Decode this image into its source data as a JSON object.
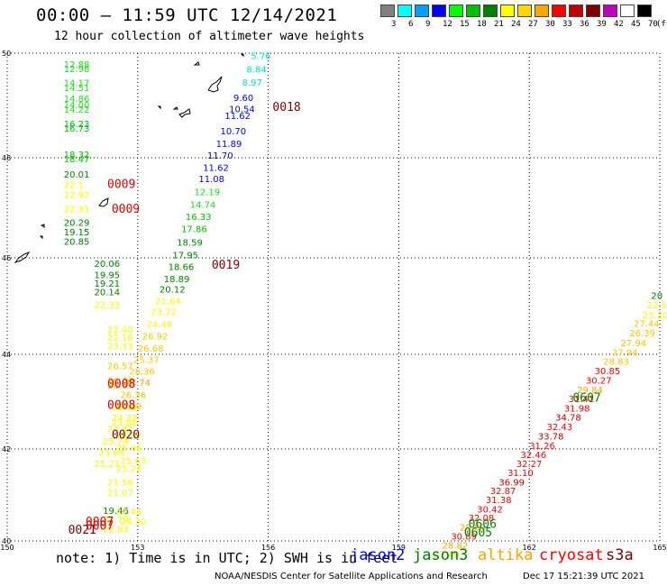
{
  "header": {
    "title": "00:00 – 11:59 UTC 12/14/2021",
    "subtitle": "12 hour collection of altimeter wave heights"
  },
  "colorbar": {
    "unit": "(ft)",
    "bins": [
      {
        "color": "#808080",
        "label": "3"
      },
      {
        "color": "#00ffff",
        "label": "6"
      },
      {
        "color": "#00a0ff",
        "label": "9"
      },
      {
        "color": "#0000ff",
        "label": "12"
      },
      {
        "color": "#00ff00",
        "label": "15"
      },
      {
        "color": "#00c000",
        "label": "18"
      },
      {
        "color": "#008000",
        "label": "21"
      },
      {
        "color": "#ffff00",
        "label": "24"
      },
      {
        "color": "#ffd700",
        "label": "27"
      },
      {
        "color": "#ffa500",
        "label": "30"
      },
      {
        "color": "#ff0000",
        "label": "33"
      },
      {
        "color": "#c00000",
        "label": "36"
      },
      {
        "color": "#800000",
        "label": "39"
      },
      {
        "color": "#c000c0",
        "label": "42"
      },
      {
        "color": "#ffffff",
        "label": "45"
      },
      {
        "color": "#000000",
        "label": "70"
      }
    ]
  },
  "axes": {
    "x_ticks": [
      "150",
      "153",
      "156",
      "159",
      "162",
      "165"
    ],
    "y_ticks": [
      "50",
      "48",
      "46",
      "44",
      "42",
      "40"
    ],
    "lon_range": [
      150,
      165
    ],
    "lat_range": [
      40,
      50
    ]
  },
  "colors": {
    "c6": "#00e0e0",
    "c12": "#0000ff",
    "c15": "#22dd22",
    "c18": "#00c000",
    "c21": "#008000",
    "c24": "#ffff00",
    "c27": "#ffc800",
    "c30": "#ffa500",
    "c33": "#ff0000",
    "c36": "#c00000",
    "time_red": "#dd0000",
    "time_dark": "#800000",
    "time_green": "#008000"
  },
  "tracks": [
    {
      "name": "track-a",
      "obs": [
        {
          "lon": 151.3,
          "lat": 49.72,
          "v": "12.88",
          "c": "c15"
        },
        {
          "lon": 151.3,
          "lat": 49.64,
          "v": "12.98",
          "c": "c15"
        },
        {
          "lon": 151.3,
          "lat": 49.37,
          "v": "14.17",
          "c": "c15"
        },
        {
          "lon": 151.3,
          "lat": 49.28,
          "v": "14.51",
          "c": "c15"
        },
        {
          "lon": 151.3,
          "lat": 49.07,
          "v": "14.86",
          "c": "c15"
        },
        {
          "lon": 151.3,
          "lat": 48.95,
          "v": "14.00",
          "c": "c15"
        },
        {
          "lon": 151.3,
          "lat": 48.86,
          "v": "14.22",
          "c": "c15"
        },
        {
          "lon": 151.3,
          "lat": 48.59,
          "v": "16.23",
          "c": "c18"
        },
        {
          "lon": 151.3,
          "lat": 48.5,
          "v": "16.73",
          "c": "c18"
        },
        {
          "lon": 151.3,
          "lat": 48.0,
          "v": "18.32",
          "c": "c18"
        },
        {
          "lon": 151.3,
          "lat": 47.91,
          "v": "18.47",
          "c": "c18"
        },
        {
          "lon": 151.3,
          "lat": 47.6,
          "v": "20.01",
          "c": "c21"
        },
        {
          "lon": 151.3,
          "lat": 47.4,
          "v": "22.1",
          "c": "c24"
        },
        {
          "lon": 151.3,
          "lat": 47.2,
          "v": "22.92",
          "c": "c24"
        },
        {
          "lon": 151.3,
          "lat": 46.91,
          "v": "22.31",
          "c": "c24"
        },
        {
          "lon": 151.3,
          "lat": 46.64,
          "v": "20.29",
          "c": "c21"
        },
        {
          "lon": 151.3,
          "lat": 46.45,
          "v": "19.15",
          "c": "c21"
        },
        {
          "lon": 151.3,
          "lat": 46.26,
          "v": "20.85",
          "c": "c21"
        },
        {
          "lon": 152.0,
          "lat": 45.81,
          "v": "20.06",
          "c": "c21"
        },
        {
          "lon": 152.0,
          "lat": 45.58,
          "v": "19.95",
          "c": "c21"
        },
        {
          "lon": 152.0,
          "lat": 45.4,
          "v": "19.21",
          "c": "c21"
        },
        {
          "lon": 152.0,
          "lat": 45.22,
          "v": "20.14",
          "c": "c21"
        },
        {
          "lon": 152.0,
          "lat": 44.95,
          "v": "22.33",
          "c": "c24"
        },
        {
          "lon": 152.3,
          "lat": 44.45,
          "v": "22.40",
          "c": "c24"
        },
        {
          "lon": 152.3,
          "lat": 44.28,
          "v": "22.16",
          "c": "c24"
        },
        {
          "lon": 152.3,
          "lat": 44.1,
          "v": "23.33",
          "c": "c24"
        },
        {
          "lon": 152.3,
          "lat": 43.69,
          "v": "26.57",
          "c": "c27"
        },
        {
          "lon": 152.3,
          "lat": 43.38,
          "v": "26.33",
          "c": "c27"
        },
        {
          "lon": 152.3,
          "lat": 43.28,
          "v": "26.57",
          "c": "c27"
        },
        {
          "lon": 152.4,
          "lat": 42.82,
          "v": "25.09",
          "c": "c24"
        },
        {
          "lon": 152.4,
          "lat": 42.5,
          "v": "23.88",
          "c": "c24"
        },
        {
          "lon": 152.5,
          "lat": 42.23,
          "v": "24.92",
          "c": "c24"
        },
        {
          "lon": 152.5,
          "lat": 41.95,
          "v": "25.66",
          "c": "c24"
        },
        {
          "lon": 152.6,
          "lat": 41.68,
          "v": "25.63",
          "c": "c24"
        },
        {
          "lon": 152.5,
          "lat": 41.5,
          "v": "25.24",
          "c": "c24"
        },
        {
          "lon": 152.3,
          "lat": 41.21,
          "v": "21.58",
          "c": "c24"
        },
        {
          "lon": 152.3,
          "lat": 40.98,
          "v": "21.07",
          "c": "c24"
        },
        {
          "lon": 152.2,
          "lat": 40.59,
          "v": "19.46",
          "c": "c21"
        },
        {
          "lon": 152.2,
          "lat": 40.4,
          "v": "21.19",
          "c": "c24"
        },
        {
          "lon": 152.2,
          "lat": 40.19,
          "v": "22.83",
          "c": "c24"
        }
      ]
    },
    {
      "name": "track-b",
      "obs": [
        {
          "lon": 155.6,
          "lat": 49.89,
          "v": "5.76",
          "c": "c6"
        },
        {
          "lon": 155.5,
          "lat": 49.63,
          "v": "8.84",
          "c": "c6"
        },
        {
          "lon": 155.4,
          "lat": 49.38,
          "v": "8.97",
          "c": "c6"
        },
        {
          "lon": 155.2,
          "lat": 49.09,
          "v": "9.60",
          "c": "c12"
        },
        {
          "lon": 155.1,
          "lat": 48.87,
          "v": "10.54",
          "c": "c12"
        },
        {
          "lon": 155.0,
          "lat": 48.74,
          "v": "11.62",
          "c": "c12"
        },
        {
          "lon": 154.9,
          "lat": 48.45,
          "v": "10.70",
          "c": "c12"
        },
        {
          "lon": 154.8,
          "lat": 48.21,
          "v": "11.89",
          "c": "c12"
        },
        {
          "lon": 154.6,
          "lat": 47.98,
          "v": "11.70",
          "c": "c12"
        },
        {
          "lon": 154.5,
          "lat": 47.74,
          "v": "11.62",
          "c": "c12"
        },
        {
          "lon": 154.4,
          "lat": 47.51,
          "v": "11.08",
          "c": "c12"
        },
        {
          "lon": 154.3,
          "lat": 47.25,
          "v": "12.19",
          "c": "c15"
        },
        {
          "lon": 154.2,
          "lat": 47.0,
          "v": "14.74",
          "c": "c15"
        },
        {
          "lon": 154.1,
          "lat": 46.76,
          "v": "16.33",
          "c": "c18"
        },
        {
          "lon": 154.0,
          "lat": 46.51,
          "v": "17.86",
          "c": "c18"
        },
        {
          "lon": 153.9,
          "lat": 46.24,
          "v": "18.59",
          "c": "c21"
        },
        {
          "lon": 153.8,
          "lat": 45.99,
          "v": "17.95",
          "c": "c21"
        },
        {
          "lon": 153.7,
          "lat": 45.75,
          "v": "18.66",
          "c": "c21"
        },
        {
          "lon": 153.6,
          "lat": 45.5,
          "v": "18.89",
          "c": "c21"
        },
        {
          "lon": 153.5,
          "lat": 45.28,
          "v": "20.12",
          "c": "c21"
        },
        {
          "lon": 153.4,
          "lat": 45.04,
          "v": "21.64",
          "c": "c24"
        },
        {
          "lon": 153.3,
          "lat": 44.81,
          "v": "23.72",
          "c": "c24"
        },
        {
          "lon": 153.2,
          "lat": 44.55,
          "v": "24.49",
          "c": "c24"
        },
        {
          "lon": 153.1,
          "lat": 44.31,
          "v": "26.92",
          "c": "c27"
        },
        {
          "lon": 153.0,
          "lat": 44.06,
          "v": "26.68",
          "c": "c27"
        },
        {
          "lon": 152.9,
          "lat": 43.82,
          "v": "25.37",
          "c": "c27"
        },
        {
          "lon": 152.8,
          "lat": 43.57,
          "v": "26.36",
          "c": "c27"
        },
        {
          "lon": 152.7,
          "lat": 43.33,
          "v": "27.74",
          "c": "c30"
        },
        {
          "lon": 152.6,
          "lat": 43.08,
          "v": "26.36",
          "c": "c27"
        },
        {
          "lon": 152.5,
          "lat": 42.84,
          "v": "26.29",
          "c": "c27"
        },
        {
          "lon": 152.4,
          "lat": 42.59,
          "v": "24.33",
          "c": "c24"
        },
        {
          "lon": 152.3,
          "lat": 42.35,
          "v": "24.82",
          "c": "c24"
        },
        {
          "lon": 152.2,
          "lat": 42.1,
          "v": "25.74",
          "c": "c24"
        },
        {
          "lon": 152.1,
          "lat": 41.85,
          "v": "25.68",
          "c": "c24"
        },
        {
          "lon": 152.0,
          "lat": 41.61,
          "v": "25.21",
          "c": "c24"
        },
        {
          "lon": 152.5,
          "lat": 40.57,
          "v": "21.46",
          "c": "c24"
        },
        {
          "lon": 152.6,
          "lat": 40.35,
          "v": "24.30",
          "c": "c24"
        }
      ]
    },
    {
      "name": "track-c",
      "obs": [
        {
          "lon": 164.8,
          "lat": 45.15,
          "v": "20",
          "c": "c21"
        },
        {
          "lon": 164.7,
          "lat": 44.95,
          "v": "22.5",
          "c": "c24"
        },
        {
          "lon": 164.6,
          "lat": 44.75,
          "v": "23.20",
          "c": "c24"
        },
        {
          "lon": 164.4,
          "lat": 44.57,
          "v": "27.44",
          "c": "c27"
        },
        {
          "lon": 164.3,
          "lat": 44.37,
          "v": "26.39",
          "c": "c27"
        },
        {
          "lon": 164.1,
          "lat": 44.17,
          "v": "27.94",
          "c": "c27"
        },
        {
          "lon": 163.9,
          "lat": 43.97,
          "v": "27.94",
          "c": "c27"
        },
        {
          "lon": 163.7,
          "lat": 43.78,
          "v": "28.83",
          "c": "c27"
        },
        {
          "lon": 163.5,
          "lat": 43.58,
          "v": "30.85",
          "c": "c33"
        },
        {
          "lon": 163.3,
          "lat": 43.38,
          "v": "30.27",
          "c": "c33"
        },
        {
          "lon": 163.1,
          "lat": 43.18,
          "v": "29.84",
          "c": "c30"
        },
        {
          "lon": 162.9,
          "lat": 42.99,
          "v": "31.41",
          "c": "c33"
        },
        {
          "lon": 162.8,
          "lat": 42.79,
          "v": "31.98",
          "c": "c33"
        },
        {
          "lon": 162.6,
          "lat": 42.6,
          "v": "34.78",
          "c": "c36"
        },
        {
          "lon": 162.4,
          "lat": 42.4,
          "v": "32.43",
          "c": "c33"
        },
        {
          "lon": 162.2,
          "lat": 42.2,
          "v": "33.78",
          "c": "c36"
        },
        {
          "lon": 162.0,
          "lat": 42.0,
          "v": "31.26",
          "c": "c33"
        },
        {
          "lon": 161.8,
          "lat": 41.8,
          "v": "32.46",
          "c": "c33"
        },
        {
          "lon": 161.7,
          "lat": 41.61,
          "v": "32.27",
          "c": "c33"
        },
        {
          "lon": 161.5,
          "lat": 41.41,
          "v": "31.10",
          "c": "c33"
        },
        {
          "lon": 161.3,
          "lat": 41.21,
          "v": "36.99",
          "c": "c36"
        },
        {
          "lon": 161.1,
          "lat": 41.02,
          "v": "32.87",
          "c": "c33"
        },
        {
          "lon": 161.0,
          "lat": 40.82,
          "v": "31.38",
          "c": "c33"
        },
        {
          "lon": 160.8,
          "lat": 40.62,
          "v": "30.42",
          "c": "c33"
        },
        {
          "lon": 160.6,
          "lat": 40.43,
          "v": "32.08",
          "c": "c33"
        },
        {
          "lon": 160.4,
          "lat": 40.23,
          "v": "28.89",
          "c": "c30"
        },
        {
          "lon": 160.2,
          "lat": 40.03,
          "v": "30.89",
          "c": "c33"
        },
        {
          "lon": 160.0,
          "lat": 39.83,
          "v": "28.82",
          "c": "c30"
        },
        {
          "lon": 159.8,
          "lat": 39.64,
          "v": "27.49",
          "c": "c27"
        }
      ]
    }
  ],
  "time_labels": [
    {
      "lon": 156.1,
      "lat": 48.9,
      "v": "0018",
      "c": "time_dark"
    },
    {
      "lon": 152.3,
      "lat": 47.4,
      "v": "0009",
      "c": "time_red"
    },
    {
      "lon": 152.4,
      "lat": 46.9,
      "v": "0009",
      "c": "time_red"
    },
    {
      "lon": 154.7,
      "lat": 45.78,
      "v": "0019",
      "c": "time_dark"
    },
    {
      "lon": 152.3,
      "lat": 43.3,
      "v": "0008",
      "c": "time_red"
    },
    {
      "lon": 152.3,
      "lat": 42.85,
      "v": "0008",
      "c": "time_red"
    },
    {
      "lon": 152.4,
      "lat": 42.22,
      "v": "0020",
      "c": "time_dark"
    },
    {
      "lon": 151.8,
      "lat": 40.33,
      "v": "0007",
      "c": "time_red"
    },
    {
      "lon": 151.8,
      "lat": 40.25,
      "v": "0007",
      "c": "time_red"
    },
    {
      "lon": 151.4,
      "lat": 40.16,
      "v": "0021",
      "c": "time_dark"
    },
    {
      "lon": 163.0,
      "lat": 43.0,
      "v": "0607",
      "c": "time_green"
    },
    {
      "lon": 160.6,
      "lat": 40.28,
      "v": "0606",
      "c": "time_green"
    },
    {
      "lon": 160.5,
      "lat": 40.1,
      "v": "0605",
      "c": "time_green"
    }
  ],
  "note": "note: 1) Time is in UTC; 2) SWH is in feet",
  "legend": [
    {
      "label": "jason2",
      "color": "#0000ff"
    },
    {
      "label": "jason3",
      "color": "#008000"
    },
    {
      "label": "altika",
      "color": "#ffa500"
    },
    {
      "label": "cryosat",
      "color": "#ff0000"
    },
    {
      "label": "s3a",
      "color": "#800000"
    }
  ],
  "footer": {
    "org": "NOAA/NESDIS Center for Satellite Applications and Research",
    "stamp": "Dec 17 15:21:39 UTC 2021"
  }
}
